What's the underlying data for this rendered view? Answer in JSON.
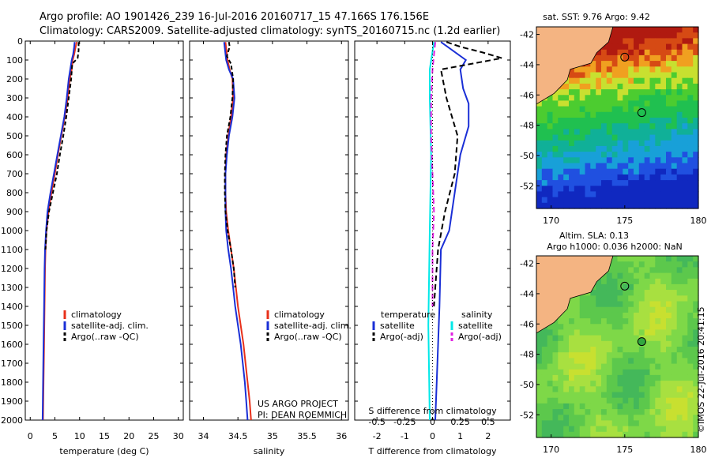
{
  "header": {
    "line1": "Argo profile: AO 1901426_239 16-Jul-2016 20160717_15 47.166S 176.156E",
    "line2": "Climatology: CARS2009. Satellite-adjusted climatology: synTS_20160715.nc (1.2d earlier)"
  },
  "side_label": "©IMOS 22-Jul-2016 20:41:15",
  "chart_data": [
    {
      "type": "line",
      "id": "temperature",
      "xlabel": "temperature (deg C)",
      "ylabel": "",
      "xlim": [
        -1,
        31
      ],
      "ylim": [
        2000,
        0
      ],
      "xticks": [
        0,
        5,
        10,
        15,
        20,
        25,
        30
      ],
      "yticks": [
        0,
        100,
        200,
        300,
        400,
        500,
        600,
        700,
        800,
        900,
        1000,
        1100,
        1200,
        1300,
        1400,
        1500,
        1600,
        1700,
        1800,
        1900,
        2000
      ],
      "legend": [
        "climatology",
        "satellite-adj. clim.",
        "Argo(..raw -QC)"
      ],
      "series": [
        {
          "name": "climatology",
          "color": "#e8301a",
          "dash": "",
          "points": [
            [
              9.4,
              5
            ],
            [
              9.2,
              30
            ],
            [
              8.9,
              70
            ],
            [
              8.6,
              100
            ],
            [
              8.4,
              150
            ],
            [
              8.0,
              200
            ],
            [
              7.6,
              300
            ],
            [
              7.0,
              400
            ],
            [
              6.3,
              500
            ],
            [
              5.6,
              600
            ],
            [
              5.0,
              700
            ],
            [
              4.3,
              800
            ],
            [
              3.7,
              900
            ],
            [
              3.3,
              1000
            ],
            [
              3.1,
              1100
            ],
            [
              3.0,
              1200
            ],
            [
              2.9,
              1400
            ],
            [
              2.8,
              1600
            ],
            [
              2.7,
              1800
            ],
            [
              2.6,
              2000
            ]
          ]
        },
        {
          "name": "satellite-adj. clim.",
          "color": "#1a2fd6",
          "dash": "",
          "points": [
            [
              9.0,
              5
            ],
            [
              8.9,
              30
            ],
            [
              8.7,
              70
            ],
            [
              8.4,
              100
            ],
            [
              8.1,
              150
            ],
            [
              7.8,
              200
            ],
            [
              7.4,
              300
            ],
            [
              6.9,
              400
            ],
            [
              6.2,
              500
            ],
            [
              5.5,
              600
            ],
            [
              4.8,
              700
            ],
            [
              4.1,
              800
            ],
            [
              3.5,
              900
            ],
            [
              3.2,
              1000
            ],
            [
              3.0,
              1100
            ],
            [
              2.9,
              1200
            ],
            [
              2.8,
              1400
            ],
            [
              2.7,
              1600
            ],
            [
              2.6,
              1800
            ],
            [
              2.5,
              2000
            ]
          ]
        },
        {
          "name": "Argo(..raw -QC)",
          "color": "#000000",
          "dash": "5,3",
          "points": [
            [
              9.8,
              5
            ],
            [
              9.8,
              50
            ],
            [
              9.6,
              90
            ],
            [
              8.5,
              120
            ],
            [
              8.3,
              200
            ],
            [
              7.8,
              300
            ],
            [
              7.3,
              400
            ],
            [
              6.7,
              500
            ],
            [
              6.0,
              600
            ],
            [
              5.4,
              700
            ],
            [
              4.6,
              800
            ],
            [
              3.8,
              900
            ],
            [
              3.3,
              1000
            ],
            [
              3.1,
              1100
            ]
          ]
        }
      ]
    },
    {
      "type": "line",
      "id": "salinity",
      "xlabel": "salinity",
      "ylabel": "",
      "xlim": [
        33.8,
        36.1
      ],
      "ylim": [
        2000,
        0
      ],
      "xticks": [
        34,
        34.5,
        35,
        35.5,
        36
      ],
      "yticks": [
        0,
        100,
        200,
        300,
        400,
        500,
        600,
        700,
        800,
        900,
        1000,
        1100,
        1200,
        1300,
        1400,
        1500,
        1600,
        1700,
        1800,
        1900,
        2000
      ],
      "legend": [
        "climatology",
        "satellite-adj. clim.",
        "Argo(..raw -QC)"
      ],
      "annotation": [
        "US ARGO PROJECT",
        "PI: DEAN ROEMMICH"
      ],
      "series": [
        {
          "name": "climatology",
          "color": "#e8301a",
          "dash": "",
          "points": [
            [
              34.32,
              5
            ],
            [
              34.35,
              100
            ],
            [
              34.38,
              150
            ],
            [
              34.42,
              200
            ],
            [
              34.43,
              300
            ],
            [
              34.4,
              400
            ],
            [
              34.36,
              500
            ],
            [
              34.33,
              600
            ],
            [
              34.32,
              700
            ],
            [
              34.32,
              800
            ],
            [
              34.33,
              900
            ],
            [
              34.36,
              1000
            ],
            [
              34.4,
              1100
            ],
            [
              34.44,
              1200
            ],
            [
              34.47,
              1300
            ],
            [
              34.5,
              1400
            ],
            [
              34.54,
              1500
            ],
            [
              34.58,
              1600
            ],
            [
              34.61,
              1700
            ],
            [
              34.64,
              1800
            ],
            [
              34.67,
              1900
            ],
            [
              34.69,
              2000
            ]
          ]
        },
        {
          "name": "satellite-adj. clim.",
          "color": "#1a2fd6",
          "dash": "",
          "points": [
            [
              34.3,
              5
            ],
            [
              34.33,
              100
            ],
            [
              34.37,
              150
            ],
            [
              34.43,
              200
            ],
            [
              34.45,
              300
            ],
            [
              34.42,
              400
            ],
            [
              34.37,
              500
            ],
            [
              34.34,
              600
            ],
            [
              34.32,
              700
            ],
            [
              34.32,
              800
            ],
            [
              34.32,
              900
            ],
            [
              34.33,
              1000
            ],
            [
              34.36,
              1100
            ],
            [
              34.4,
              1200
            ],
            [
              34.43,
              1300
            ],
            [
              34.46,
              1400
            ],
            [
              34.5,
              1500
            ],
            [
              34.54,
              1600
            ],
            [
              34.57,
              1700
            ],
            [
              34.6,
              1800
            ],
            [
              34.62,
              1900
            ],
            [
              34.64,
              2000
            ]
          ]
        },
        {
          "name": "Argo(..raw -QC)",
          "color": "#000000",
          "dash": "5,3",
          "points": [
            [
              34.37,
              5
            ],
            [
              34.38,
              30
            ],
            [
              34.34,
              80
            ],
            [
              34.4,
              120
            ],
            [
              34.43,
              200
            ],
            [
              34.42,
              300
            ],
            [
              34.39,
              400
            ],
            [
              34.34,
              500
            ],
            [
              34.32,
              600
            ],
            [
              34.31,
              700
            ],
            [
              34.31,
              800
            ],
            [
              34.32,
              900
            ],
            [
              34.35,
              1000
            ],
            [
              34.4,
              1100
            ],
            [
              34.44,
              1200
            ],
            [
              34.46,
              1300
            ]
          ]
        }
      ]
    },
    {
      "type": "line",
      "id": "difference",
      "xlabel": "T difference from climatology",
      "xlabel_top": "S difference from climatology",
      "ylabel": "",
      "xlim": [
        -2.8,
        2.8
      ],
      "ylim": [
        2000,
        0
      ],
      "xticks": [
        -2,
        -1,
        0,
        1,
        2
      ],
      "xticks_s": [
        "-0.5",
        "-0.25",
        "0",
        "0.25",
        "0.5"
      ],
      "xticks_s_values": [
        -0.5,
        -0.25,
        0,
        0.25,
        0.5
      ],
      "yticks": [
        0,
        100,
        200,
        300,
        400,
        500,
        600,
        700,
        800,
        900,
        1000,
        1100,
        1200,
        1300,
        1400,
        1500,
        1600,
        1700,
        1800,
        1900,
        2000
      ],
      "legend": {
        "temperature_title": "temperature",
        "salinity_title": "salinity",
        "items": [
          "satellite",
          "Argo(-adj)",
          "satellite",
          "Argo(-adj)"
        ]
      },
      "series": [
        {
          "name": "temperature satellite",
          "color": "#1a2fd6",
          "dash": "",
          "points": [
            [
              0.3,
              5
            ],
            [
              1.2,
              100
            ],
            [
              1.0,
              150
            ],
            [
              1.1,
              250
            ],
            [
              1.3,
              330
            ],
            [
              1.3,
              450
            ],
            [
              1.0,
              600
            ],
            [
              0.8,
              800
            ],
            [
              0.6,
              1000
            ],
            [
              0.3,
              1100
            ],
            [
              0.25,
              1400
            ],
            [
              0.15,
              1800
            ],
            [
              0.1,
              2000
            ]
          ]
        },
        {
          "name": "temperature Argo(-adj)",
          "color": "#000000",
          "dash": "7,4",
          "points": [
            [
              0.5,
              5
            ],
            [
              1.0,
              30
            ],
            [
              1.8,
              60
            ],
            [
              2.5,
              90
            ],
            [
              0.3,
              150
            ],
            [
              0.5,
              300
            ],
            [
              0.9,
              500
            ],
            [
              0.8,
              700
            ],
            [
              0.45,
              900
            ],
            [
              0.2,
              1100
            ],
            [
              0.1,
              1300
            ],
            [
              0.05,
              1400
            ]
          ]
        },
        {
          "name": "salinity satellite",
          "color": "#00e8e8",
          "dash": "",
          "points": [
            [
              0.05,
              5
            ],
            [
              -0.1,
              150
            ],
            [
              -0.1,
              300
            ],
            [
              -0.05,
              600
            ],
            [
              -0.1,
              1000
            ],
            [
              -0.15,
              1500
            ],
            [
              -0.12,
              1800
            ],
            [
              -0.1,
              2000
            ]
          ]
        },
        {
          "name": "salinity Argo(-adj)",
          "color": "#e020e0",
          "dash": "7,4",
          "points": [
            [
              0.1,
              5
            ],
            [
              0.0,
              150
            ],
            [
              -0.05,
              300
            ],
            [
              -0.05,
              500
            ],
            [
              0.0,
              700
            ],
            [
              0.05,
              900
            ],
            [
              0.0,
              1100
            ],
            [
              0.0,
              1300
            ],
            [
              0.0,
              1400
            ]
          ]
        }
      ]
    },
    {
      "type": "heatmap",
      "id": "sst-map",
      "title": "sat. SST: 9.76 Argo: 9.42",
      "xticks": [
        "170",
        "175",
        "180"
      ],
      "yticks": [
        "-42",
        "-44",
        "-46",
        "-48",
        "-50",
        "-52"
      ],
      "xlim": [
        169,
        180
      ],
      "ylim": [
        -53.5,
        -41.5
      ]
    },
    {
      "type": "heatmap",
      "id": "sla-map",
      "title": "Altim. SLA: 0.13",
      "subtitle": "Argo h1000: 0.036 h2000: NaN",
      "xticks": [
        "170",
        "175",
        "180"
      ],
      "yticks": [
        "-42",
        "-44",
        "-46",
        "-48",
        "-50",
        "-52"
      ],
      "xlim": [
        169,
        180
      ],
      "ylim": [
        -53.5,
        -41.5
      ]
    }
  ]
}
